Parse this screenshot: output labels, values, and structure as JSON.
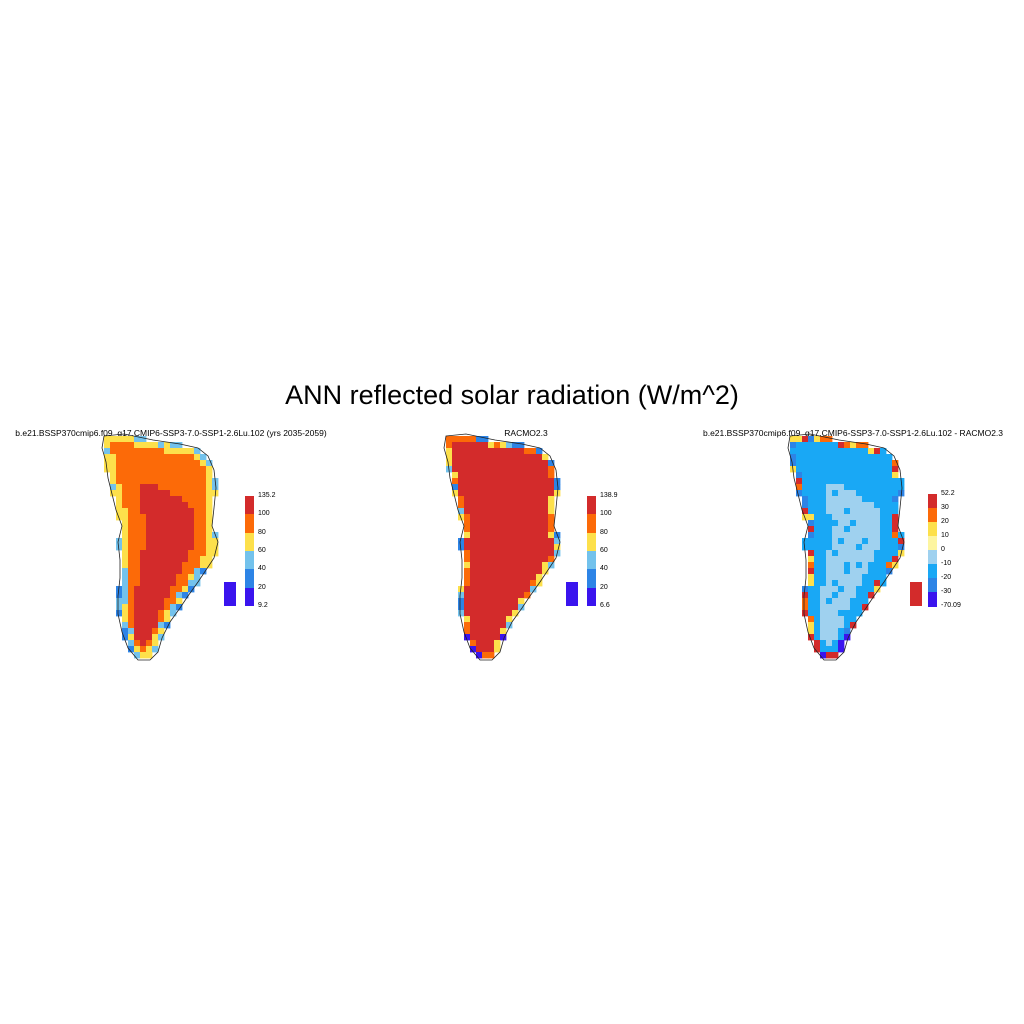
{
  "title": "ANN reflected solar radiation (W/m^2)",
  "panels": [
    {
      "title": "b.e21.BSSP370cmip6.f09_g17.CMIP6-SSP3-7.0-SSP1-2.6Lu.102 (yrs 2035-2059)",
      "colorbar": {
        "labels": [
          "135.2",
          "100",
          "80",
          "60",
          "40",
          "20",
          "9.2"
        ],
        "colors": [
          "#d32b2b",
          "#fc6a08",
          "#fde04b",
          "#73c2ec",
          "#2d84e6",
          "#3a14ee"
        ]
      },
      "field": "model"
    },
    {
      "title": "RACMO2.3",
      "colorbar": {
        "labels": [
          "138.9",
          "100",
          "80",
          "60",
          "40",
          "20",
          "6.6"
        ],
        "colors": [
          "#d32b2b",
          "#fc6a08",
          "#fde04b",
          "#73c2ec",
          "#2d84e6",
          "#3a14ee"
        ]
      },
      "field": "obs"
    },
    {
      "title": "b.e21.BSSP370cmip6.f09_g17.CMIP6-SSP3-7.0-SSP1-2.6Lu.102 - RACMO2.3",
      "colorbar": {
        "labels": [
          "52.2",
          "30",
          "20",
          "10",
          "0",
          "-10",
          "-20",
          "-30",
          "-70.09"
        ],
        "colors": [
          "#d32b2b",
          "#fc6a08",
          "#fde04b",
          "#fdf5a0",
          "#9fd1ef",
          "#19a8f5",
          "#2d84e6",
          "#3a14ee"
        ]
      },
      "field": "diff"
    }
  ]
}
